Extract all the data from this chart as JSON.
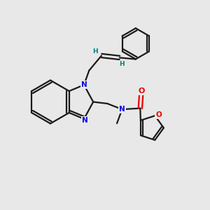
{
  "bg_color": "#e8e8e8",
  "bond_color": "#1a1a1a",
  "N_color": "#0000ee",
  "O_color": "#ee0000",
  "H_color": "#008080",
  "line_width": 1.6,
  "xlim": [
    0,
    10
  ],
  "ylim": [
    0,
    10
  ]
}
